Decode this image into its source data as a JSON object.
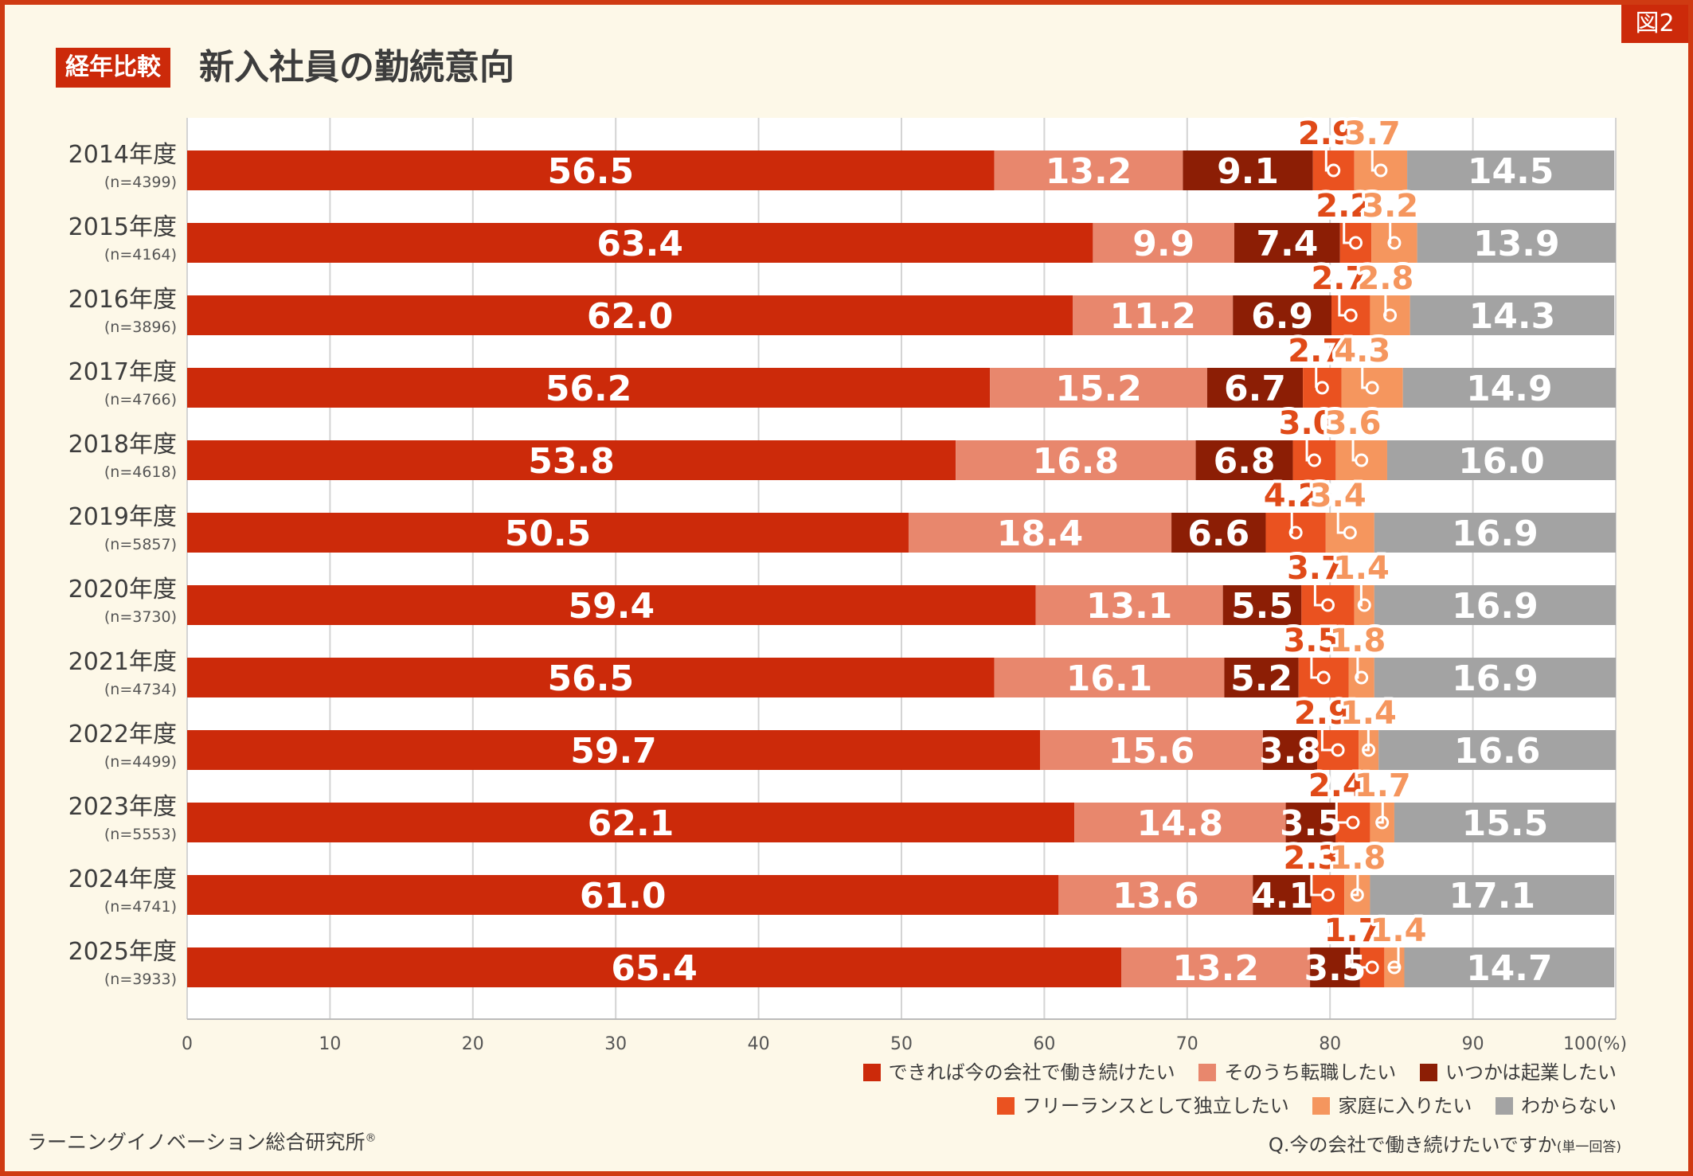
{
  "figure_badge": "図2",
  "title_badge": "経年比較",
  "title": "新入社員の勤続意向",
  "question": "Q.今の会社で働き続けたいですか",
  "question_note": "(単一回答)",
  "source": "ラーニングイノベーション総合研究所",
  "source_mark": "®",
  "chart_data": {
    "type": "bar",
    "orientation": "horizontal",
    "stacked": true,
    "xlim": [
      0,
      100
    ],
    "xticks": [
      "0",
      "10",
      "20",
      "30",
      "40",
      "50",
      "60",
      "70",
      "80",
      "90",
      "100(%)"
    ],
    "grid": true,
    "legend_position": "bottom-right",
    "categories": [
      {
        "label": "2014年度",
        "n": "(n=4399)"
      },
      {
        "label": "2015年度",
        "n": "(n=4164)"
      },
      {
        "label": "2016年度",
        "n": "(n=3896)"
      },
      {
        "label": "2017年度",
        "n": "(n=4766)"
      },
      {
        "label": "2018年度",
        "n": "(n=4618)"
      },
      {
        "label": "2019年度",
        "n": "(n=5857)"
      },
      {
        "label": "2020年度",
        "n": "(n=3730)"
      },
      {
        "label": "2021年度",
        "n": "(n=4734)"
      },
      {
        "label": "2022年度",
        "n": "(n=4499)"
      },
      {
        "label": "2023年度",
        "n": "(n=5553)"
      },
      {
        "label": "2024年度",
        "n": "(n=4741)"
      },
      {
        "label": "2025年度",
        "n": "(n=3933)"
      }
    ],
    "series": [
      {
        "name": "できれば今の会社で働き続けたい",
        "color": "#cc2a0a",
        "values": [
          "56.5",
          "63.4",
          "62.0",
          "56.2",
          "53.8",
          "50.5",
          "59.4",
          "56.5",
          "59.7",
          "62.1",
          "61.0",
          "65.4"
        ]
      },
      {
        "name": "そのうち転職したい",
        "color": "#e8876d",
        "values": [
          "13.2",
          "9.9",
          "11.2",
          "15.2",
          "16.8",
          "18.4",
          "13.1",
          "16.1",
          "15.6",
          "14.8",
          "13.6",
          "13.2"
        ]
      },
      {
        "name": "いつかは起業したい",
        "color": "#8c1e05",
        "values": [
          "9.1",
          "7.4",
          "6.9",
          "6.7",
          "6.8",
          "6.6",
          "5.5",
          "5.2",
          "3.8",
          "3.5",
          "4.1",
          "3.5"
        ]
      },
      {
        "name": "フリーランスとして独立したい",
        "color": "#ea5220",
        "values": [
          "2.9",
          "2.2",
          "2.7",
          "2.7",
          "3.0",
          "4.2",
          "3.7",
          "3.5",
          "2.9",
          "2.4",
          "2.3",
          "1.7"
        ]
      },
      {
        "name": "家庭に入りたい",
        "color": "#f5965e",
        "values": [
          "3.7",
          "3.2",
          "2.8",
          "4.3",
          "3.6",
          "3.4",
          "1.4",
          "1.8",
          "1.4",
          "1.7",
          "1.8",
          "1.4"
        ]
      },
      {
        "name": "わからない",
        "color": "#a3a3a3",
        "values": [
          "14.5",
          "13.9",
          "14.3",
          "14.9",
          "16.0",
          "16.9",
          "16.9",
          "16.9",
          "16.6",
          "15.5",
          "17.1",
          "14.7"
        ]
      }
    ]
  }
}
